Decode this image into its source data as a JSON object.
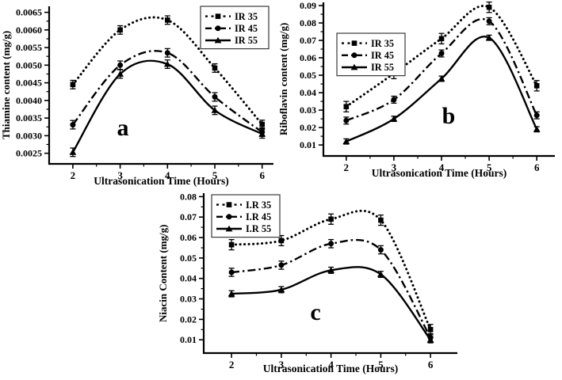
{
  "figure": {
    "background": "#ffffff",
    "ink_color": "#000000",
    "panel_letters": [
      "a",
      "b",
      "c"
    ]
  },
  "chart_data": [
    {
      "id": "a",
      "type": "line",
      "panel_label": "a",
      "xlabel": "Ultrasonication Time (Hours)",
      "ylabel": "Thiamine content (mg/g)",
      "x": [
        2,
        3,
        4,
        5,
        6
      ],
      "xticks": [
        2,
        3,
        4,
        5,
        6
      ],
      "x_minor_ticks": [
        2.5,
        3.5,
        4.5,
        5.5
      ],
      "xlim": [
        1.5,
        6.24
      ],
      "ylim": [
        0.0022,
        0.00667
      ],
      "yticks": [
        0.0025,
        0.003,
        0.0035,
        0.004,
        0.0045,
        0.005,
        0.0055,
        0.006,
        0.0065
      ],
      "ytick_decimals": 4,
      "grid": false,
      "legend_position": "top-right",
      "series": [
        {
          "name": "IR 35",
          "marker": "square",
          "line_style": "dotted",
          "values": [
            0.00445,
            0.006,
            0.00628,
            0.00492,
            0.00332
          ],
          "yerr": 0.00012
        },
        {
          "name": "IR 45",
          "marker": "circle",
          "line_style": "dashdot",
          "values": [
            0.00331,
            0.005,
            0.00535,
            0.0041,
            0.0031
          ],
          "yerr": 0.00012
        },
        {
          "name": "IR 55",
          "marker": "triangle",
          "line_style": "solid",
          "values": [
            0.00253,
            0.00475,
            0.00503,
            0.00372,
            0.00305
          ],
          "yerr": 0.00012
        }
      ]
    },
    {
      "id": "b",
      "type": "line",
      "panel_label": "b",
      "xlabel": "Ultrasonication Time (Hours)",
      "ylabel": "Riboflavin content (mg/g)",
      "x": [
        2,
        3,
        4,
        5,
        6
      ],
      "xticks": [
        2,
        3,
        4,
        5,
        6
      ],
      "x_minor_ticks": [
        2.5,
        3.5,
        4.5,
        5.5
      ],
      "xlim": [
        1.52,
        6.38
      ],
      "ylim": [
        0.0037,
        0.0918
      ],
      "yticks": [
        0.01,
        0.02,
        0.03,
        0.04,
        0.05,
        0.06,
        0.07,
        0.08,
        0.09
      ],
      "ytick_decimals": 2,
      "grid": false,
      "legend_position": "upper-left",
      "series": [
        {
          "name": "IR 35",
          "marker": "square",
          "line_style": "dotted",
          "values": [
            0.032,
            0.051,
            0.071,
            0.089,
            0.044
          ],
          "yerr": 0.003
        },
        {
          "name": "IR 45",
          "marker": "circle",
          "line_style": "dashdot",
          "values": [
            0.024,
            0.036,
            0.0625,
            0.081,
            0.027
          ],
          "yerr": 0.002
        },
        {
          "name": "IR 55",
          "marker": "triangle",
          "line_style": "solid",
          "values": [
            0.012,
            0.025,
            0.048,
            0.0715,
            0.019
          ],
          "yerr": 0.0015
        }
      ]
    },
    {
      "id": "c",
      "type": "line",
      "panel_label": "c",
      "xlabel": "Ultrasonication Time (Hours)",
      "ylabel": "Niacin Content (mg/g)",
      "x": [
        2,
        3,
        4,
        5,
        6
      ],
      "xticks": [
        2,
        3,
        4,
        5,
        6
      ],
      "x_minor_ticks": [
        2.5,
        3.5,
        4.5,
        5.5
      ],
      "xlim": [
        1.44,
        6.54
      ],
      "ylim": [
        0.0035,
        0.0817
      ],
      "yticks": [
        0.01,
        0.02,
        0.03,
        0.04,
        0.05,
        0.06,
        0.07,
        0.08
      ],
      "ytick_decimals": 2,
      "grid": false,
      "legend_position": "top-left",
      "series": [
        {
          "name": "I.R 35",
          "marker": "square",
          "line_style": "dotted",
          "values": [
            0.0565,
            0.0585,
            0.069,
            0.0685,
            0.015
          ],
          "yerr": 0.0025
        },
        {
          "name": "I.R 45",
          "marker": "circle",
          "line_style": "dashdot",
          "values": [
            0.043,
            0.0465,
            0.057,
            0.054,
            0.011
          ],
          "yerr": 0.002
        },
        {
          "name": "I.R 55",
          "marker": "triangle",
          "line_style": "solid",
          "values": [
            0.0325,
            0.0345,
            0.044,
            0.042,
            0.01
          ],
          "yerr": 0.0015
        }
      ]
    }
  ]
}
